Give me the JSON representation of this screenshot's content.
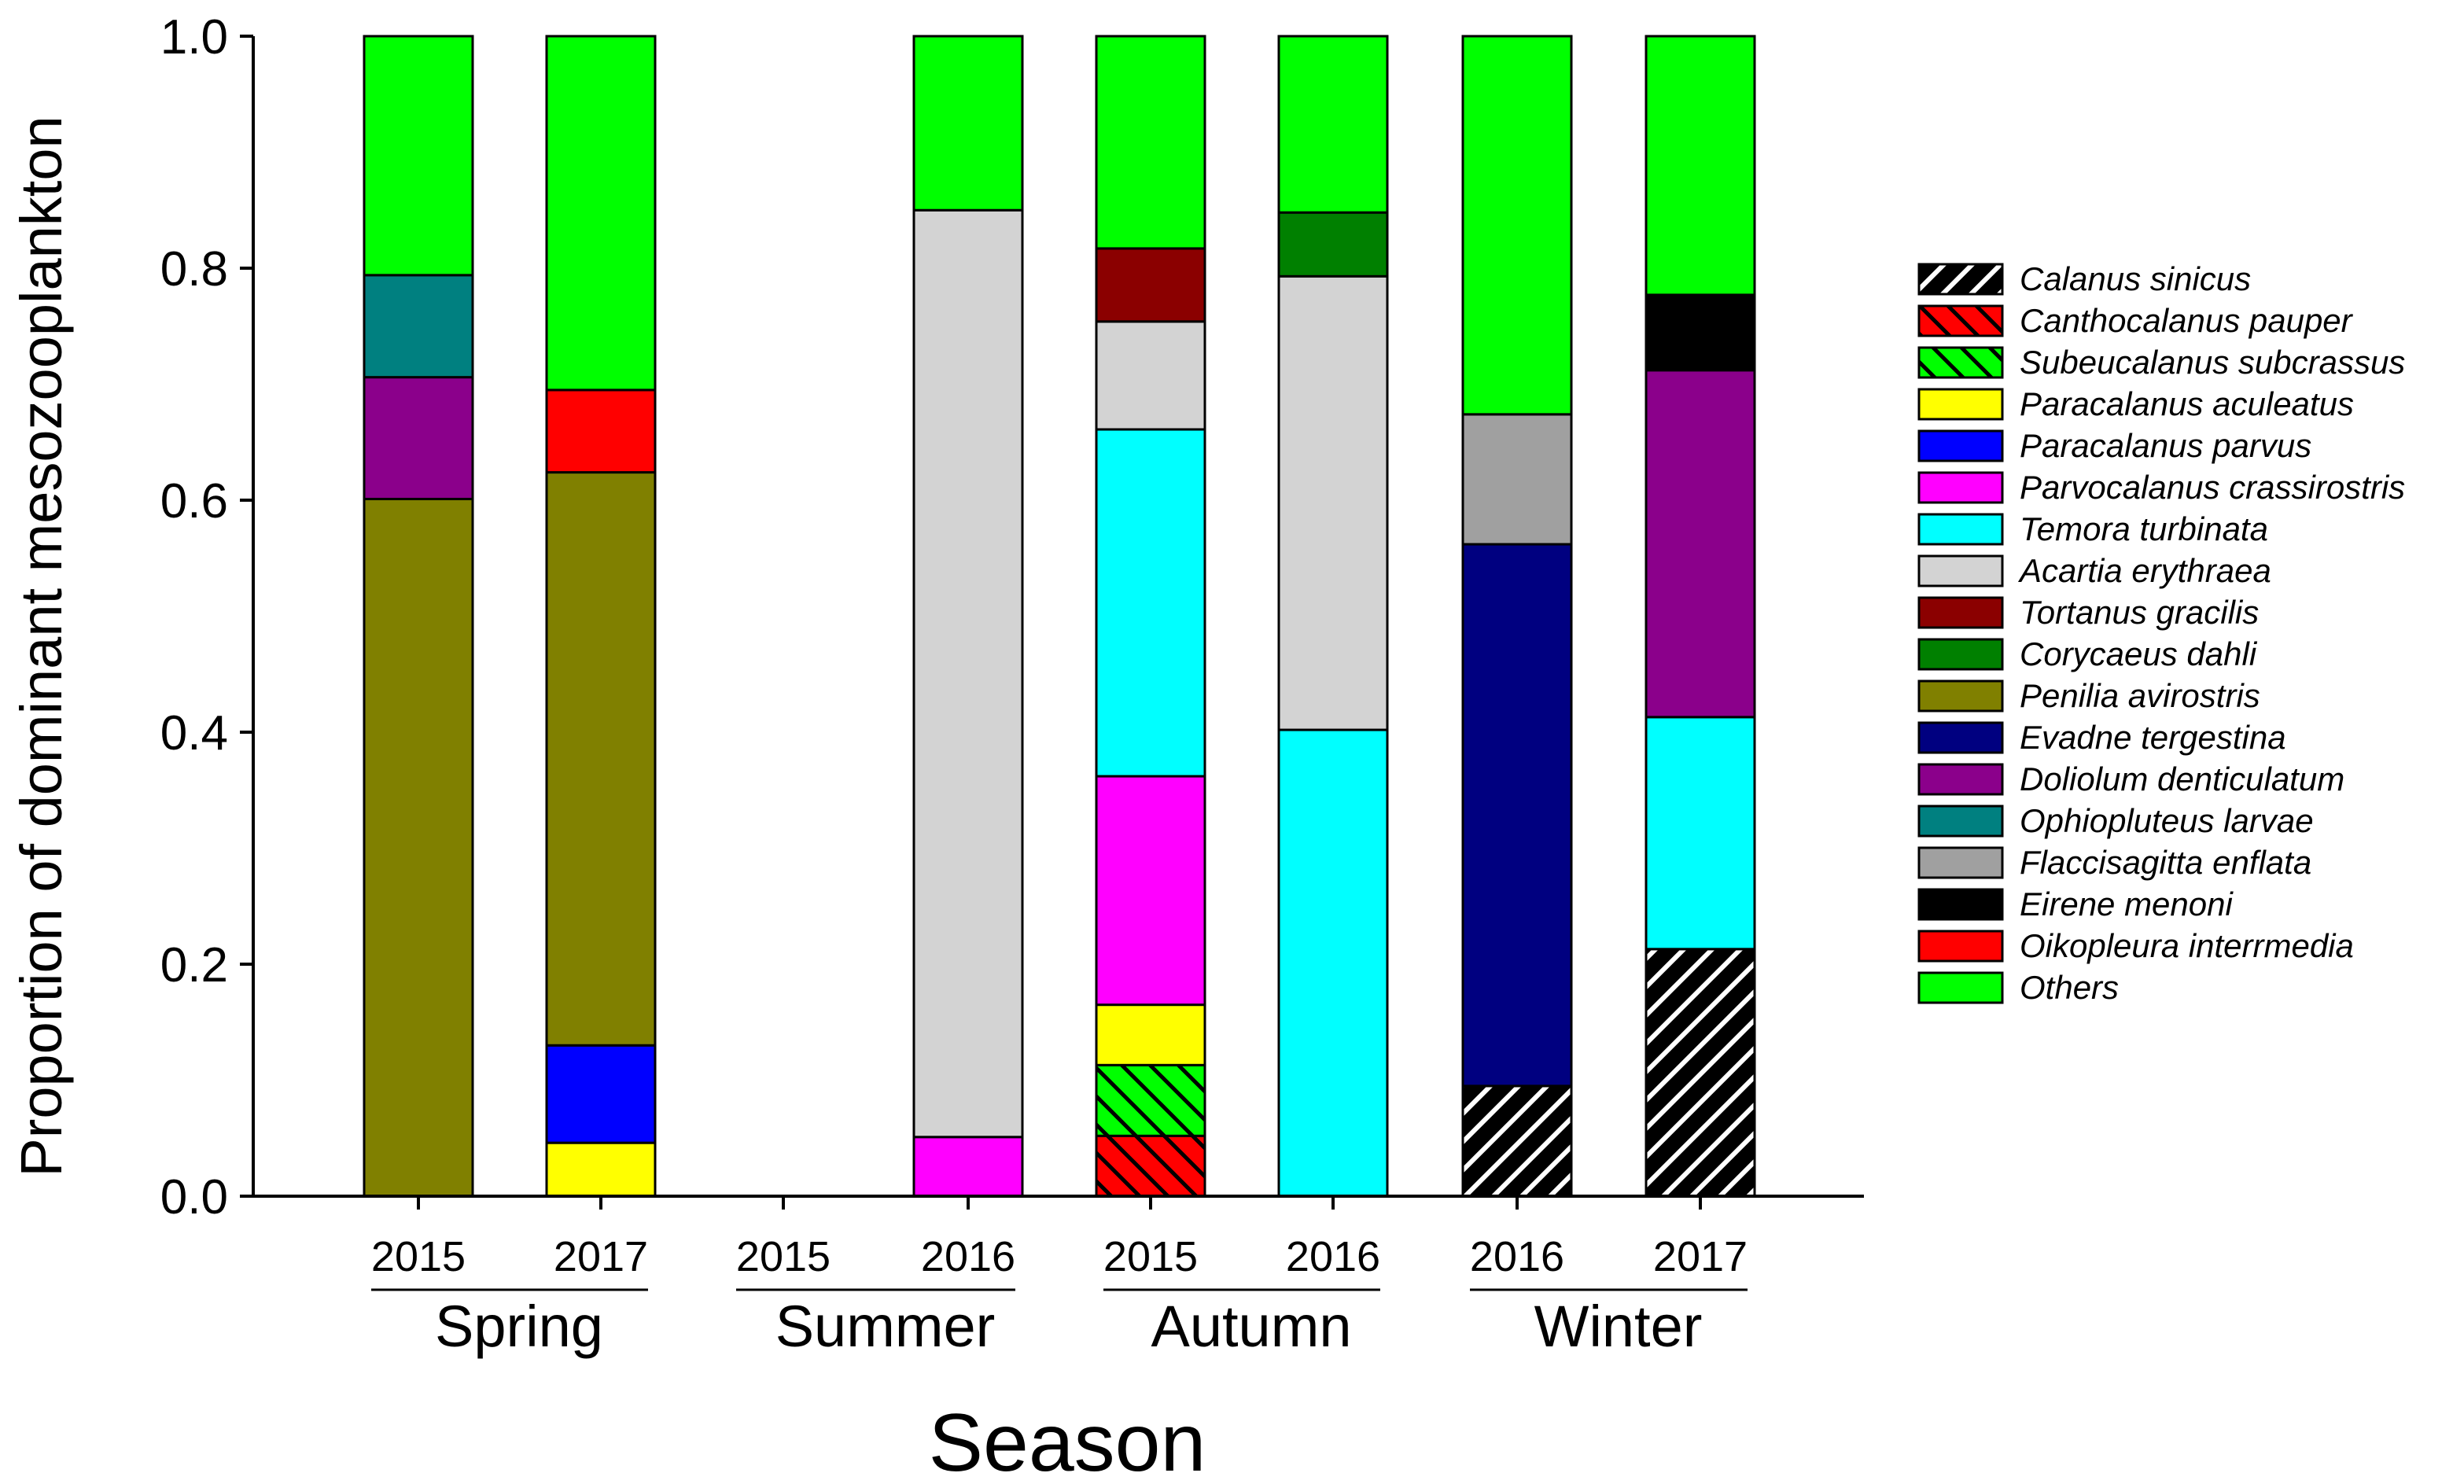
{
  "chart_data": {
    "type": "bar",
    "stacked": true,
    "title": "",
    "xlabel": "Season",
    "ylabel": "Proportion of dominant mesozooplankton",
    "ylim": [
      0,
      1
    ],
    "yticks": [
      0,
      0.2,
      0.4,
      0.6,
      0.8,
      1.0
    ],
    "ytick_labels": [
      "0.0",
      "0.2",
      "0.4",
      "0.6",
      "0.8",
      "1.0"
    ],
    "legend_position": "right",
    "categories": [
      {
        "season": "Spring",
        "year": "2015"
      },
      {
        "season": "Spring",
        "year": "2017"
      },
      {
        "season": "Summer",
        "year": "2015"
      },
      {
        "season": "Summer",
        "year": "2016"
      },
      {
        "season": "Autumn",
        "year": "2015"
      },
      {
        "season": "Autumn",
        "year": "2016"
      },
      {
        "season": "Winter",
        "year": "2016"
      },
      {
        "season": "Winter",
        "year": "2017"
      }
    ],
    "season_groups": [
      {
        "label": "Spring",
        "from": 0,
        "to": 1
      },
      {
        "label": "Summer",
        "from": 2,
        "to": 3
      },
      {
        "label": "Autumn",
        "from": 4,
        "to": 5
      },
      {
        "label": "Winter",
        "from": 6,
        "to": 7
      }
    ],
    "series": [
      {
        "name": "Calanus sinicus",
        "color": "#000000",
        "hatch": "white-diagonal",
        "values": [
          0,
          0,
          0,
          0,
          0,
          0,
          0.095,
          0.213
        ]
      },
      {
        "name": "Canthocalanus pauper",
        "color": "#ff0000",
        "hatch": "black-backslash",
        "values": [
          0,
          0,
          0,
          0,
          0.052,
          0,
          0,
          0
        ]
      },
      {
        "name": "Subeucalanus subcrassus",
        "color": "#00ff00",
        "hatch": "black-backslash",
        "values": [
          0,
          0,
          0,
          0,
          0.061,
          0,
          0,
          0
        ]
      },
      {
        "name": "Paracalanus aculeatus",
        "color": "#ffff00",
        "values": [
          0,
          0.046,
          0,
          0,
          0.052,
          0,
          0,
          0
        ]
      },
      {
        "name": "Paracalanus parvus",
        "color": "#0000ff",
        "values": [
          0,
          0.084,
          0,
          0,
          0,
          0,
          0,
          0
        ]
      },
      {
        "name": "Parvocalanus crassirostris",
        "color": "#ff00ff",
        "values": [
          0,
          0,
          0,
          0.051,
          0.197,
          0,
          0,
          0
        ]
      },
      {
        "name": "Temora turbinata",
        "color": "#00ffff",
        "values": [
          0,
          0,
          0,
          0,
          0.299,
          0.402,
          0,
          0.2
        ]
      },
      {
        "name": "Acartia erythraea",
        "color": "#d3d3d3",
        "values": [
          0,
          0,
          0,
          0.799,
          0.093,
          0.391,
          0,
          0
        ]
      },
      {
        "name": "Tortanus gracilis",
        "color": "#8b0000",
        "values": [
          0,
          0,
          0,
          0,
          0.063,
          0,
          0,
          0
        ]
      },
      {
        "name": "Corycaeus dahli",
        "color": "#008000",
        "values": [
          0,
          0,
          0,
          0,
          0,
          0.055,
          0,
          0
        ]
      },
      {
        "name": "Penilia avirostris",
        "color": "#808000",
        "values": [
          0.601,
          0.494,
          0,
          0,
          0,
          0,
          0,
          0
        ]
      },
      {
        "name": "Evadne tergestina",
        "color": "#000080",
        "values": [
          0,
          0,
          0,
          0,
          0,
          0,
          0.467,
          0
        ]
      },
      {
        "name": "Doliolum denticulatum",
        "color": "#8b008b",
        "values": [
          0.105,
          0,
          0,
          0,
          0,
          0,
          0,
          0.299
        ]
      },
      {
        "name": "Ophiopluteus larvae",
        "color": "#008080",
        "values": [
          0.088,
          0,
          0,
          0,
          0,
          0,
          0,
          0
        ]
      },
      {
        "name": "Flaccisagitta enflata",
        "color": "#a0a0a0",
        "values": [
          0,
          0,
          0,
          0,
          0,
          0,
          0.112,
          0
        ]
      },
      {
        "name": "Eirene menoni",
        "color": "#000000",
        "values": [
          0,
          0,
          0,
          0,
          0,
          0,
          0,
          0.065
        ]
      },
      {
        "name": "Oikopleura interrmedia",
        "color": "#ff0000",
        "values": [
          0,
          0.071,
          0,
          0,
          0,
          0,
          0,
          0
        ]
      },
      {
        "name": "Others",
        "color": "#00ff00",
        "values": [
          0.206,
          0.305,
          0,
          0.15,
          0.183,
          0.152,
          0.326,
          0.223
        ]
      }
    ]
  }
}
